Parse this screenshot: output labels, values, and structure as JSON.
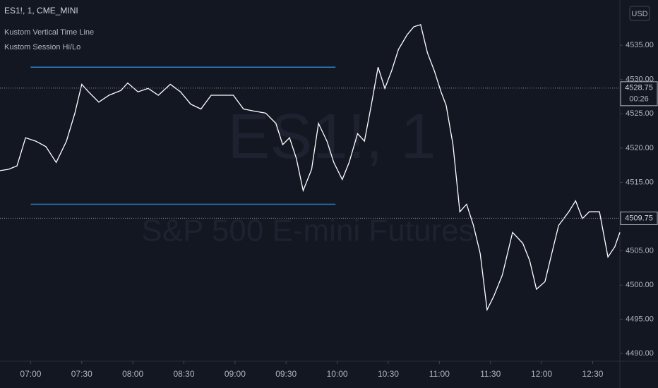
{
  "chart_data": {
    "type": "line",
    "title": "ES1!, 1, CME_MINI",
    "indicators": [
      "Kustom Vertical Time Line",
      "Kustom Session Hi/Lo"
    ],
    "watermark": [
      "ES1!, 1",
      "S&P 500 E-mini Futures"
    ],
    "currency": "USD",
    "color": "#ffffff",
    "x": [
      402,
      407,
      412,
      417,
      423,
      429,
      435,
      441,
      446,
      450,
      454,
      460,
      466,
      473,
      477,
      483,
      489,
      495,
      502,
      508,
      514,
      520,
      526,
      533,
      539,
      545,
      551,
      558,
      564,
      568,
      572,
      576,
      580,
      585,
      589,
      594,
      598,
      603,
      607,
      612,
      616,
      620,
      624,
      628,
      632,
      636,
      641,
      645,
      649,
      653,
      657,
      661,
      664,
      668,
      672,
      676,
      680,
      684,
      688,
      692,
      697,
      703,
      709,
      713,
      717,
      722,
      726,
      730,
      736,
      740,
      744,
      748,
      754,
      759,
      763,
      766
    ],
    "values": [
      4516.7,
      4516.9,
      4517.4,
      4521.5,
      4521.0,
      4520.2,
      4517.9,
      4521.0,
      4525.1,
      4529.3,
      4528.2,
      4526.7,
      4527.7,
      4528.4,
      4529.5,
      4528.2,
      4528.7,
      4527.7,
      4529.3,
      4528.2,
      4526.4,
      4525.7,
      4527.7,
      4527.7,
      4527.7,
      4525.7,
      4525.4,
      4525.1,
      4523.6,
      4520.5,
      4521.5,
      4518.5,
      4513.8,
      4516.9,
      4523.6,
      4521.0,
      4517.9,
      4515.4,
      4517.9,
      4522.1,
      4521.0,
      4526.2,
      4531.8,
      4528.7,
      4531.3,
      4534.4,
      4536.5,
      4537.7,
      4538.0,
      4533.9,
      4531.3,
      4528.2,
      4526.2,
      4520.5,
      4510.7,
      4511.8,
      4508.7,
      4504.6,
      4496.4,
      4498.4,
      4501.5,
      4507.7,
      4506.1,
      4503.6,
      4499.4,
      4500.5,
      4504.6,
      4508.7,
      4510.7,
      4512.3,
      4509.7,
      4510.7,
      4510.7,
      4504.1,
      4505.6,
      4507.7
    ],
    "xlim": [
      402,
      766
    ],
    "ylim": [
      4488.9,
      4541.6
    ],
    "xticks": [
      {
        "value": 420,
        "label": "07:00"
      },
      {
        "value": 450,
        "label": "07:30"
      },
      {
        "value": 480,
        "label": "08:00"
      },
      {
        "value": 510,
        "label": "08:30"
      },
      {
        "value": 540,
        "label": "09:00"
      },
      {
        "value": 570,
        "label": "09:30"
      },
      {
        "value": 600,
        "label": "10:00"
      },
      {
        "value": 630,
        "label": "10:30"
      },
      {
        "value": 660,
        "label": "11:00"
      },
      {
        "value": 690,
        "label": "11:30"
      },
      {
        "value": 720,
        "label": "12:00"
      },
      {
        "value": 750,
        "label": "12:30"
      }
    ],
    "yticks": [
      {
        "value": 4490,
        "label": "4490.00"
      },
      {
        "value": 4495,
        "label": "4495.00"
      },
      {
        "value": 4500,
        "label": "4500.00"
      },
      {
        "value": 4505,
        "label": "4505.00"
      },
      {
        "value": 4510,
        "label": "4510.00"
      },
      {
        "value": 4515,
        "label": "4515.00"
      },
      {
        "value": 4520,
        "label": "4520.00"
      },
      {
        "value": 4525,
        "label": "4525.00"
      },
      {
        "value": 4530,
        "label": "4530.00"
      },
      {
        "value": 4535,
        "label": "4535.00"
      }
    ],
    "session": {
      "high": 4531.8,
      "low": 4511.8,
      "x": [
        420,
        599
      ],
      "color": "#2f7fc1"
    },
    "price_labels": [
      {
        "value": 4528.75,
        "countdown": "00:26"
      },
      {
        "value": 4509.75
      }
    ]
  }
}
